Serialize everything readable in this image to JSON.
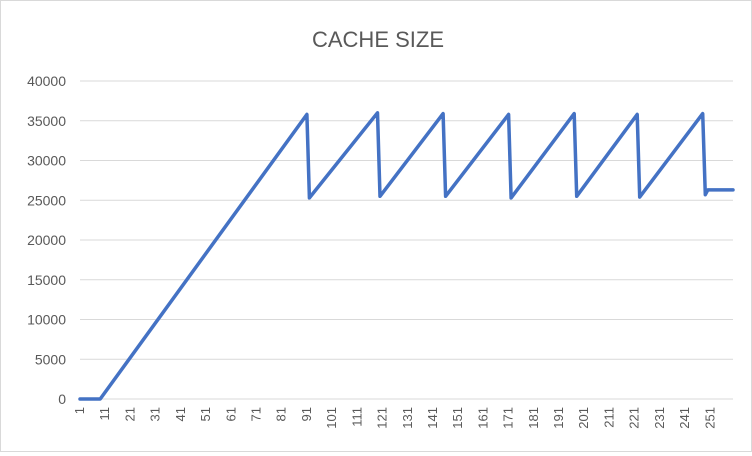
{
  "chart_data": {
    "type": "line",
    "title": "CACHE SIZE",
    "xlabel": "",
    "ylabel": "",
    "ylim": [
      0,
      40000
    ],
    "xlim": [
      1,
      260
    ],
    "y_ticks": [
      0,
      5000,
      10000,
      15000,
      20000,
      25000,
      30000,
      35000,
      40000
    ],
    "y_tick_labels": [
      "0",
      "5000",
      "10000",
      "15000",
      "20000",
      "25000",
      "30000",
      "35000",
      "40000"
    ],
    "x_tick_labels": [
      "1",
      "11",
      "21",
      "31",
      "41",
      "51",
      "61",
      "71",
      "81",
      "91",
      "101",
      "111",
      "121",
      "131",
      "141",
      "151",
      "161",
      "171",
      "181",
      "191",
      "201",
      "211",
      "221",
      "231",
      "241",
      "251"
    ],
    "grid": true,
    "legend": "none",
    "series": [
      {
        "color": "#4472c4",
        "x": [
          1,
          9,
          91,
          92,
          119,
          120,
          145,
          146,
          171,
          172,
          197,
          198,
          222,
          223,
          248,
          249,
          250,
          260
        ],
        "y": [
          0,
          0,
          35800,
          25300,
          36000,
          25500,
          35900,
          25500,
          35800,
          25300,
          35900,
          25500,
          35800,
          25400,
          35900,
          25700,
          26300,
          26300
        ]
      }
    ]
  }
}
